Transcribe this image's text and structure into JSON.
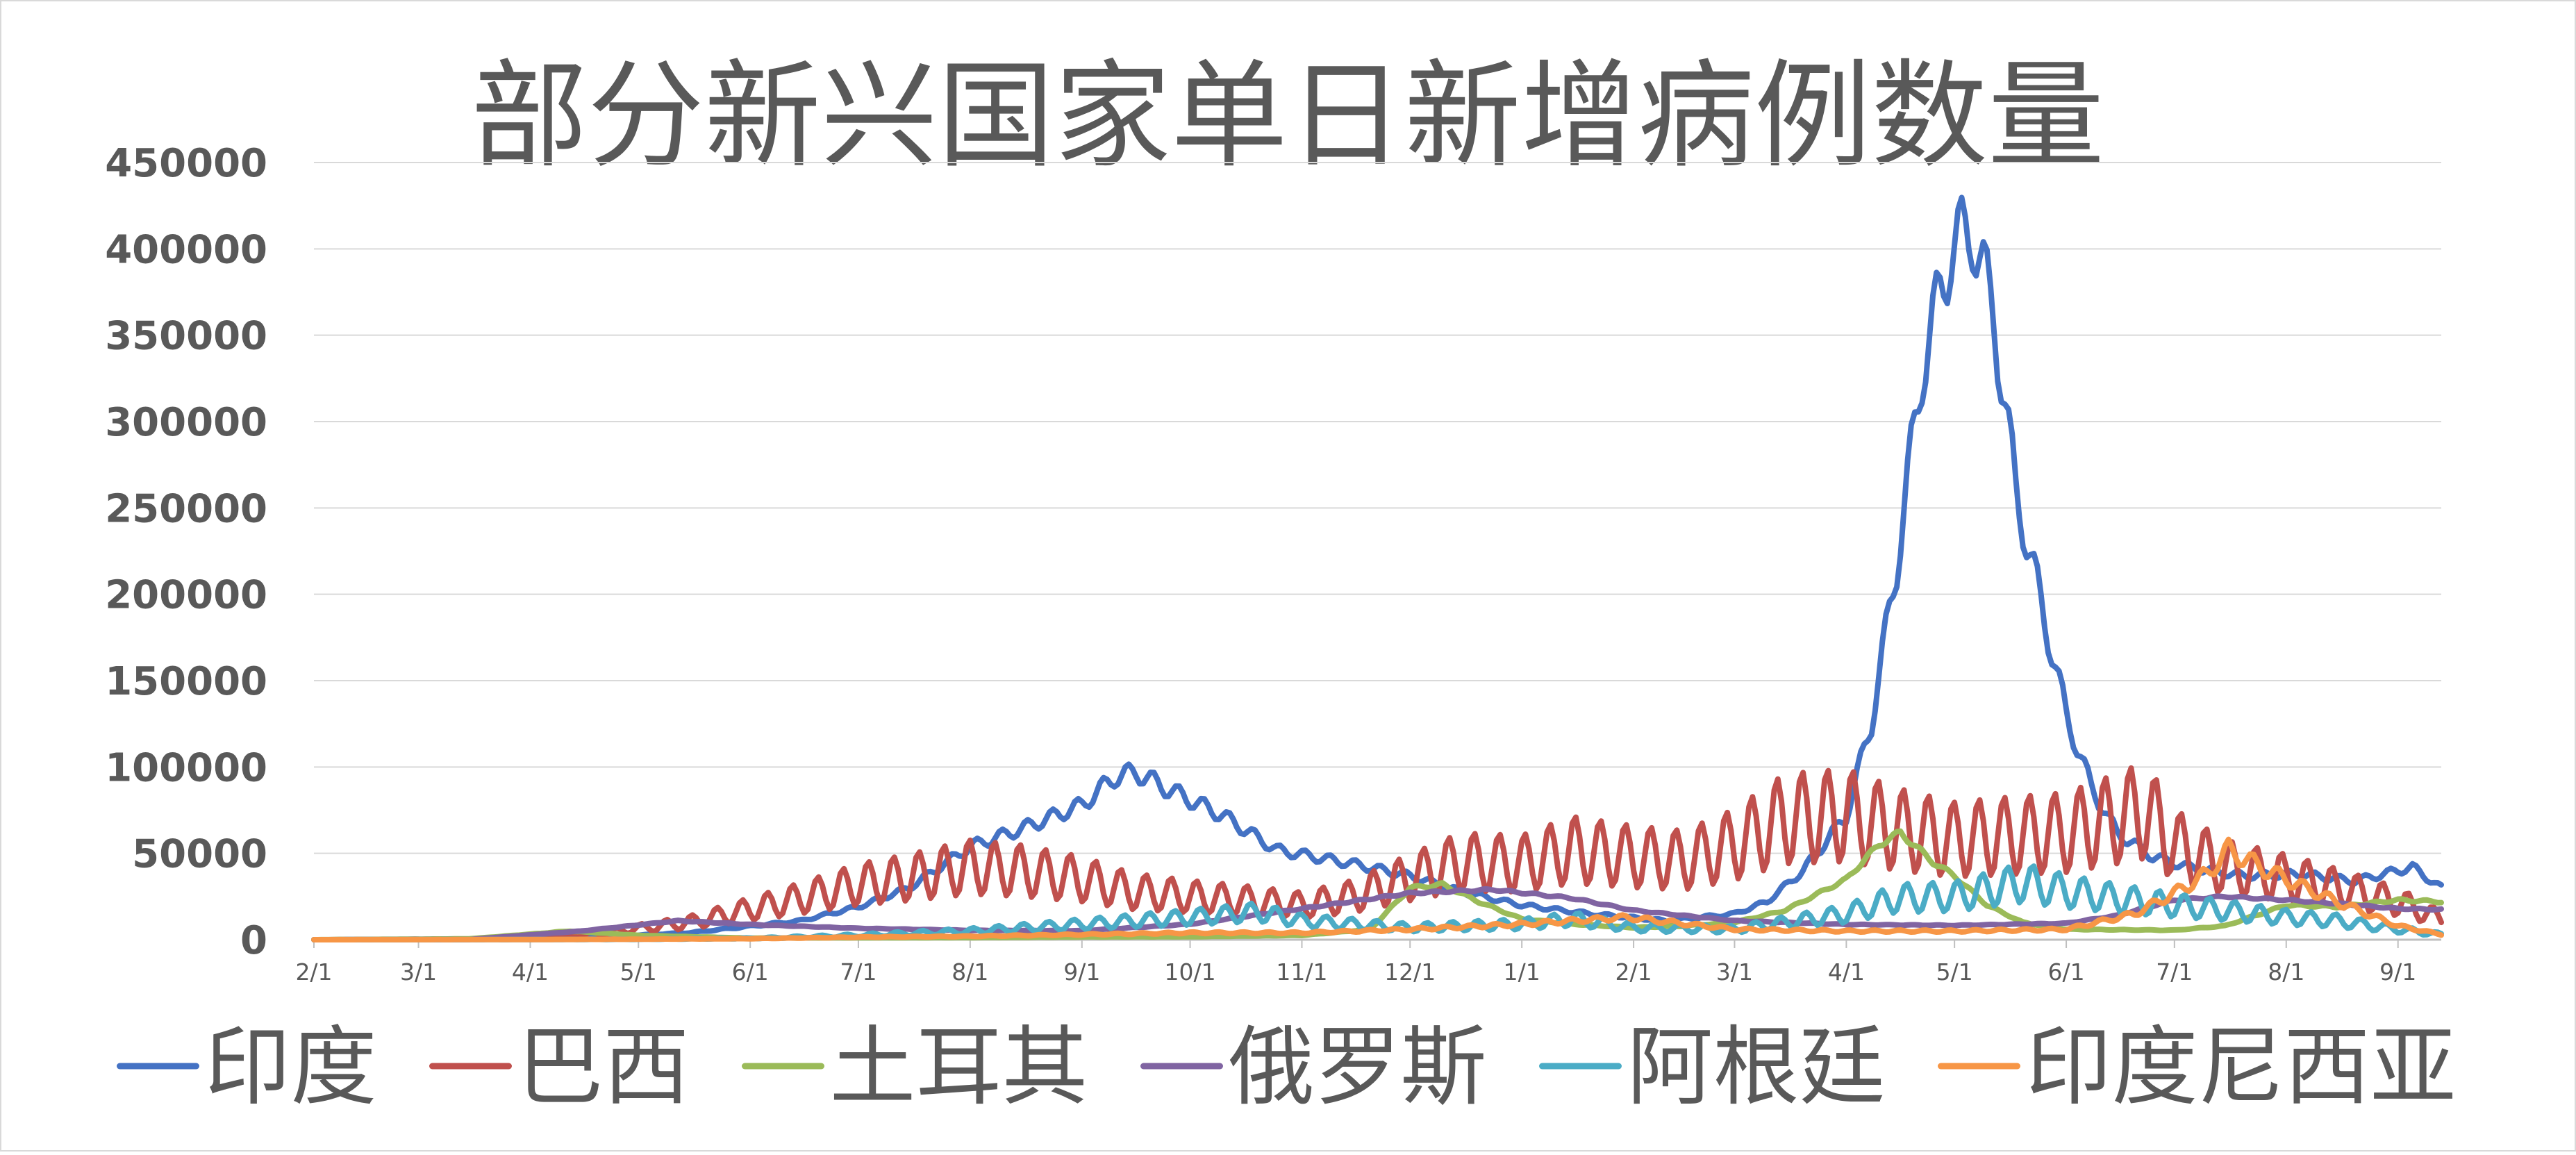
{
  "chart_data": {
    "type": "line",
    "title": "部分新兴国家单日新增病例数量",
    "xlabel": "",
    "ylabel": "",
    "ylim": [
      0,
      450000
    ],
    "yticks": [
      0,
      50000,
      100000,
      150000,
      200000,
      250000,
      300000,
      350000,
      400000,
      450000
    ],
    "ytick_labels": [
      "0",
      "50000",
      "100000",
      "150000",
      "200000",
      "250000",
      "300000",
      "350000",
      "400000",
      "450000"
    ],
    "x_start_date": "2020-02-01",
    "x_end_date": "2021-09-13",
    "xtick_labels": [
      "2/1",
      "3/1",
      "4/1",
      "5/1",
      "6/1",
      "7/1",
      "8/1",
      "9/1",
      "10/1",
      "11/1",
      "12/1",
      "1/1",
      "2/1",
      "3/1",
      "4/1",
      "5/1",
      "6/1",
      "7/1",
      "8/1",
      "9/1"
    ],
    "xtick_dates": [
      "2020-02-01",
      "2020-03-01",
      "2020-04-01",
      "2020-05-01",
      "2020-06-01",
      "2020-07-01",
      "2020-08-01",
      "2020-09-01",
      "2020-10-01",
      "2020-11-01",
      "2020-12-01",
      "2021-01-01",
      "2021-02-01",
      "2021-03-01",
      "2021-04-01",
      "2021-05-01",
      "2021-06-01",
      "2021-07-01",
      "2021-08-01",
      "2021-09-01"
    ],
    "grid": true,
    "legend_position": "bottom",
    "series": [
      {
        "name": "印度",
        "color": "#4472C4",
        "weekly_amplitude": 0.06,
        "x": [
          "2020-02-01",
          "2020-03-15",
          "2020-04-15",
          "2020-05-15",
          "2020-06-15",
          "2020-07-01",
          "2020-07-15",
          "2020-08-01",
          "2020-08-15",
          "2020-09-01",
          "2020-09-10",
          "2020-09-16",
          "2020-09-25",
          "2020-10-10",
          "2020-10-25",
          "2020-11-15",
          "2020-12-01",
          "2020-12-15",
          "2021-01-01",
          "2021-01-20",
          "2021-02-10",
          "2021-03-01",
          "2021-03-10",
          "2021-03-20",
          "2021-04-01",
          "2021-04-08",
          "2021-04-15",
          "2021-04-22",
          "2021-04-30",
          "2021-05-06",
          "2021-05-12",
          "2021-05-18",
          "2021-05-25",
          "2021-06-01",
          "2021-06-08",
          "2021-06-15",
          "2021-06-25",
          "2021-07-05",
          "2021-07-20",
          "2021-08-05",
          "2021-08-20",
          "2021-09-05",
          "2021-09-13"
        ],
        "y": [
          0,
          100,
          1200,
          4000,
          11000,
          19000,
          30000,
          54000,
          64000,
          78000,
          94000,
          97000,
          87000,
          72000,
          52000,
          44000,
          37000,
          28000,
          20000,
          15000,
          11000,
          15000,
          22000,
          40000,
          72000,
          126000,
          217000,
          330000,
          400000,
          412000,
          360000,
          260000,
          195000,
          130000,
          88000,
          62000,
          48000,
          42000,
          37000,
          38000,
          34000,
          42000,
          30000
        ]
      },
      {
        "name": "巴西",
        "color": "#C0504D",
        "weekly_amplitude": 0.38,
        "x": [
          "2020-02-01",
          "2020-03-15",
          "2020-04-15",
          "2020-05-15",
          "2020-06-15",
          "2020-07-01",
          "2020-07-15",
          "2020-08-01",
          "2020-08-15",
          "2020-09-01",
          "2020-09-15",
          "2020-10-01",
          "2020-10-15",
          "2020-11-01",
          "2020-11-15",
          "2020-12-01",
          "2020-12-15",
          "2021-01-01",
          "2021-01-15",
          "2021-02-01",
          "2021-02-15",
          "2021-03-01",
          "2021-03-15",
          "2021-04-01",
          "2021-04-15",
          "2021-05-01",
          "2021-05-15",
          "2021-06-01",
          "2021-06-15",
          "2021-06-23",
          "2021-07-01",
          "2021-07-15",
          "2021-08-01",
          "2021-08-15",
          "2021-09-01",
          "2021-09-13"
        ],
        "y": [
          0,
          300,
          2500,
          10000,
          24000,
          32000,
          36000,
          42000,
          40000,
          35000,
          28000,
          25000,
          23000,
          20000,
          25000,
          36000,
          45000,
          44000,
          52000,
          48000,
          46000,
          55000,
          70000,
          72000,
          64000,
          58000,
          60000,
          62000,
          70000,
          75000,
          55000,
          42000,
          36000,
          30000,
          22000,
          12000
        ]
      },
      {
        "name": "土耳其",
        "color": "#9BBB59",
        "weekly_amplitude": 0.03,
        "x": [
          "2020-02-01",
          "2020-03-15",
          "2020-04-12",
          "2020-05-01",
          "2020-06-01",
          "2020-07-01",
          "2020-08-01",
          "2020-09-01",
          "2020-10-01",
          "2020-11-01",
          "2020-11-20",
          "2020-12-01",
          "2020-12-10",
          "2020-12-20",
          "2021-01-01",
          "2021-01-15",
          "2021-02-01",
          "2021-02-15",
          "2021-03-01",
          "2021-03-15",
          "2021-04-01",
          "2021-04-10",
          "2021-04-16",
          "2021-04-25",
          "2021-05-01",
          "2021-05-10",
          "2021-05-20",
          "2021-06-01",
          "2021-07-01",
          "2021-07-15",
          "2021-08-01",
          "2021-08-15",
          "2021-09-01",
          "2021-09-13"
        ],
        "y": [
          0,
          500,
          5000,
          2500,
          900,
          1100,
          1200,
          1600,
          1700,
          2500,
          6000,
          30000,
          32000,
          22000,
          12000,
          9000,
          7000,
          8000,
          10000,
          17000,
          35000,
          55000,
          62000,
          45000,
          37000,
          20000,
          10000,
          6000,
          5500,
          8000,
          20000,
          19000,
          23000,
          22000
        ]
      },
      {
        "name": "俄罗斯",
        "color": "#8064A2",
        "weekly_amplitude": 0.02,
        "x": [
          "2020-02-01",
          "2020-03-15",
          "2020-04-15",
          "2020-05-12",
          "2020-06-01",
          "2020-07-01",
          "2020-08-01",
          "2020-09-01",
          "2020-10-01",
          "2020-11-01",
          "2020-12-01",
          "2020-12-24",
          "2021-01-15",
          "2021-02-01",
          "2021-03-01",
          "2021-04-01",
          "2021-05-01",
          "2021-06-01",
          "2021-06-15",
          "2021-07-01",
          "2021-07-15",
          "2021-08-01",
          "2021-08-15",
          "2021-09-01",
          "2021-09-13"
        ],
        "y": [
          0,
          100,
          5000,
          11000,
          8800,
          6600,
          5400,
          5200,
          9000,
          18000,
          27000,
          29000,
          24000,
          17000,
          11000,
          8800,
          8300,
          9500,
          14000,
          23000,
          25000,
          23000,
          21000,
          18000,
          17500
        ]
      },
      {
        "name": "阿根廷",
        "color": "#4BACC6",
        "weekly_amplitude": 0.35,
        "x": [
          "2020-02-01",
          "2020-04-01",
          "2020-05-01",
          "2020-06-01",
          "2020-07-01",
          "2020-08-01",
          "2020-09-01",
          "2020-10-01",
          "2020-10-20",
          "2020-11-01",
          "2020-12-01",
          "2021-01-01",
          "2021-01-15",
          "2021-02-01",
          "2021-03-01",
          "2021-04-01",
          "2021-04-15",
          "2021-05-01",
          "2021-05-20",
          "2021-06-01",
          "2021-06-15",
          "2021-07-01",
          "2021-07-15",
          "2021-08-01",
          "2021-08-15",
          "2021-09-01",
          "2021-09-13"
        ],
        "y": [
          0,
          80,
          250,
          800,
          2500,
          5000,
          9000,
          13000,
          16000,
          11000,
          7000,
          9000,
          12000,
          7000,
          6000,
          15000,
          24000,
          25000,
          33000,
          28000,
          24000,
          20000,
          17000,
          13000,
          11000,
          6000,
          3000
        ]
      },
      {
        "name": "印度尼西亚",
        "color": "#F79646",
        "weekly_amplitude": 0.12,
        "x": [
          "2020-02-01",
          "2020-04-01",
          "2020-05-01",
          "2020-06-01",
          "2020-07-01",
          "2020-08-01",
          "2020-09-01",
          "2020-10-01",
          "2020-11-01",
          "2020-12-01",
          "2021-01-01",
          "2021-01-30",
          "2021-03-01",
          "2021-04-01",
          "2021-05-01",
          "2021-06-01",
          "2021-06-20",
          "2021-07-01",
          "2021-07-10",
          "2021-07-16",
          "2021-07-25",
          "2021-08-01",
          "2021-08-15",
          "2021-09-01",
          "2021-09-13"
        ],
        "y": [
          0,
          100,
          300,
          600,
          1500,
          2000,
          3000,
          4000,
          4000,
          6000,
          9000,
          13000,
          6000,
          5000,
          5000,
          6000,
          15000,
          27000,
          38000,
          52000,
          42000,
          35000,
          22000,
          8000,
          3000
        ]
      }
    ]
  }
}
